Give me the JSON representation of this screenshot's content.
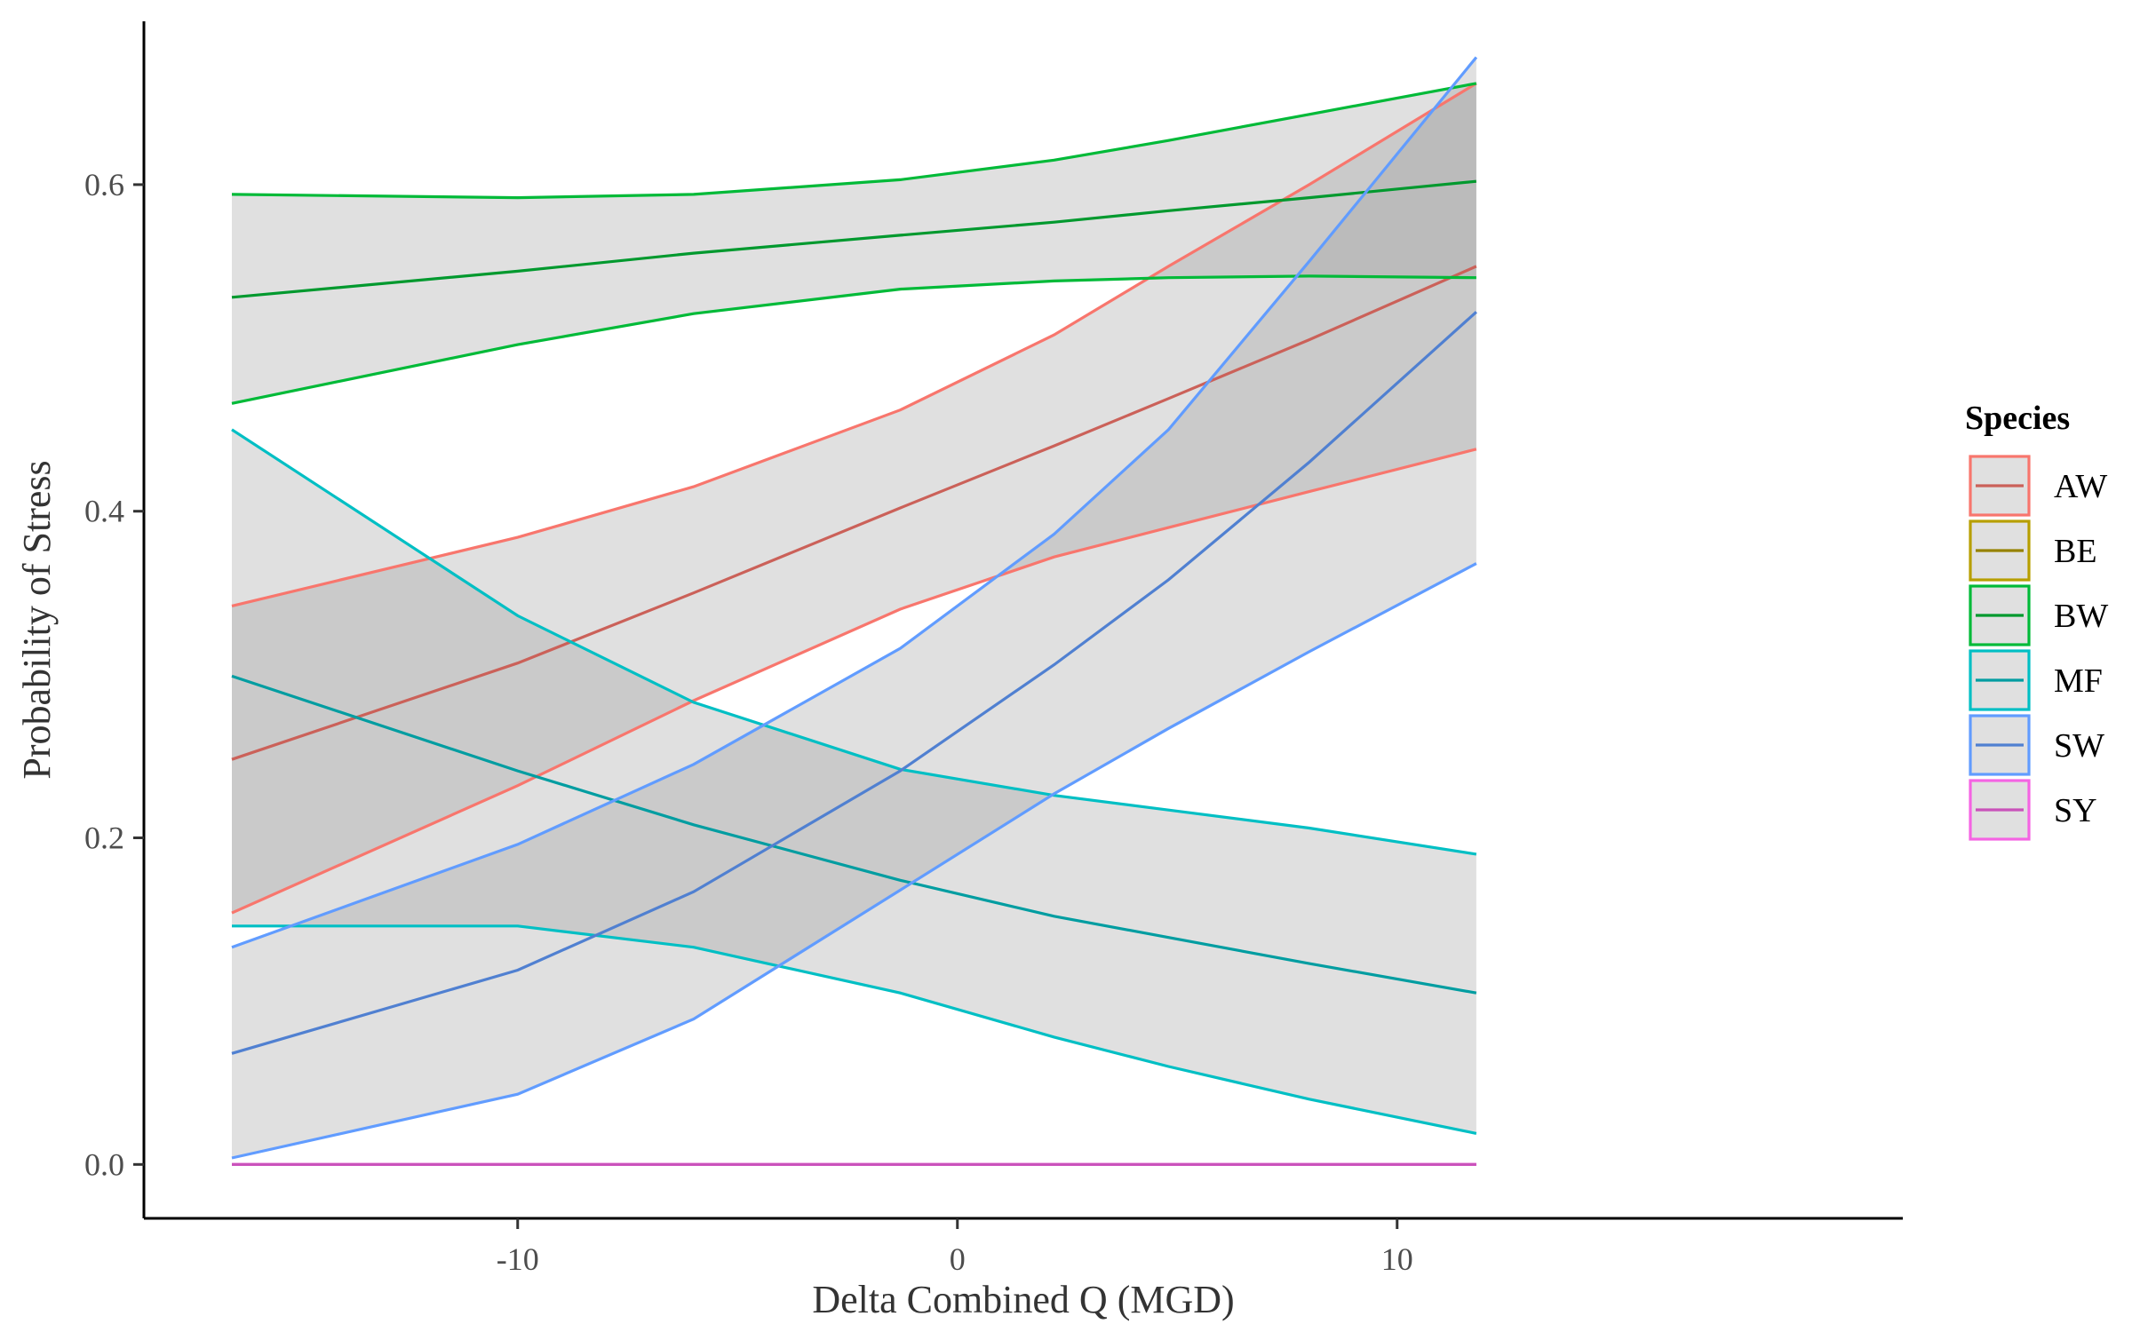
{
  "chart_data": {
    "type": "line",
    "title": "",
    "xlabel": "Delta Combined Q (MGD)",
    "ylabel": "Probability of Stress",
    "xlim": [
      -18.5,
      21.5
    ],
    "ylim": [
      -0.033,
      0.7
    ],
    "x_ticks": [
      -10,
      0,
      10
    ],
    "x_tick_labels": [
      "-10",
      "0",
      "10"
    ],
    "y_ticks": [
      0.0,
      0.2,
      0.4,
      0.6
    ],
    "y_tick_labels": [
      "0.0",
      "0.2",
      "0.4",
      "0.6"
    ],
    "grid": false,
    "legend": {
      "title": "Species",
      "placement": "right",
      "entries": [
        "AW",
        "BE",
        "BW",
        "MF",
        "SW",
        "SY"
      ]
    },
    "x": [
      -16.5,
      -10,
      -6,
      -1.3,
      2.2,
      4.8,
      8,
      11.8
    ],
    "series": [
      {
        "name": "AW",
        "color": "#F8766D",
        "fit": [
          0.248,
          0.307,
          0.35,
          0.402,
          0.44,
          0.469,
          0.505,
          0.55
        ],
        "lower": [
          0.154,
          0.232,
          0.284,
          0.34,
          0.372,
          0.39,
          0.412,
          0.438
        ],
        "upper": [
          0.342,
          0.384,
          0.415,
          0.462,
          0.508,
          0.55,
          0.6,
          0.662
        ]
      },
      {
        "name": "BE",
        "color": "#B79F00",
        "fit": [],
        "lower": [],
        "upper": []
      },
      {
        "name": "BW",
        "color": "#00BA38",
        "fit": [
          0.531,
          0.547,
          0.558,
          0.569,
          0.577,
          0.584,
          0.592,
          0.602
        ],
        "lower": [
          0.466,
          0.502,
          0.521,
          0.536,
          0.541,
          0.543,
          0.544,
          0.543
        ],
        "upper": [
          0.594,
          0.592,
          0.594,
          0.603,
          0.615,
          0.627,
          0.643,
          0.662
        ]
      },
      {
        "name": "MF",
        "color": "#00BFC4",
        "fit": [
          0.299,
          0.241,
          0.208,
          0.174,
          0.152,
          0.139,
          0.123,
          0.105
        ],
        "lower": [
          0.146,
          0.146,
          0.133,
          0.105,
          0.078,
          0.06,
          0.04,
          0.019
        ],
        "upper": [
          0.45,
          0.336,
          0.283,
          0.242,
          0.226,
          0.217,
          0.206,
          0.19
        ]
      },
      {
        "name": "SW",
        "color": "#619CFF",
        "fit": [
          0.068,
          0.119,
          0.167,
          0.241,
          0.306,
          0.358,
          0.43,
          0.522
        ],
        "lower": [
          0.004,
          0.043,
          0.089,
          0.168,
          0.227,
          0.267,
          0.314,
          0.368
        ],
        "upper": [
          0.133,
          0.196,
          0.245,
          0.316,
          0.386,
          0.45,
          0.553,
          0.678
        ]
      },
      {
        "name": "SY",
        "color": "#F564E3",
        "fit": [
          0.0,
          0.0,
          0.0,
          0.0,
          0.0,
          0.0,
          0.0,
          0.0
        ],
        "lower": [
          0.0,
          0.0,
          0.0,
          0.0,
          0.0,
          0.0,
          0.0,
          0.0
        ],
        "upper": [
          0.0,
          0.0,
          0.0,
          0.0,
          0.0,
          0.0,
          0.0,
          0.0
        ]
      }
    ]
  }
}
